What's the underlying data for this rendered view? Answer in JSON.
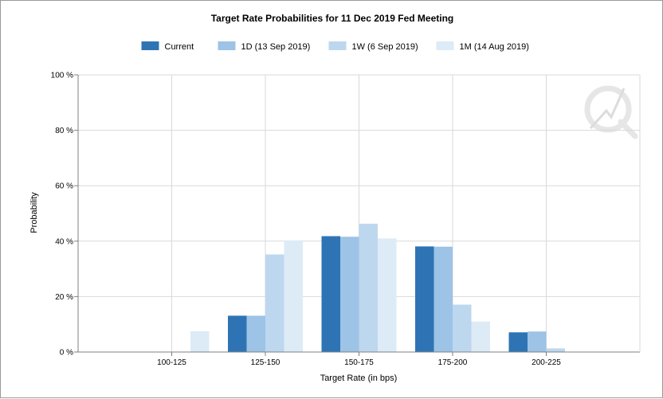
{
  "chart_data": {
    "type": "bar",
    "title": "Target Rate Probabilities for 11 Dec 2019 Fed Meeting",
    "xlabel": "Target Rate (in bps)",
    "ylabel": "Probability",
    "categories": [
      "100-125",
      "125-150",
      "150-175",
      "175-200",
      "200-225"
    ],
    "series": [
      {
        "name": "Current",
        "color": "#2e74b5",
        "values": [
          0,
          13.1,
          41.8,
          38.1,
          7.1
        ]
      },
      {
        "name": "1D (13 Sep 2019)",
        "color": "#9dc3e6",
        "values": [
          0,
          13.1,
          41.6,
          38.0,
          7.4
        ]
      },
      {
        "name": "1W (6 Sep 2019)",
        "color": "#bdd7ee",
        "values": [
          0,
          35.2,
          46.3,
          17.1,
          1.3
        ]
      },
      {
        "name": "1M (14 Aug 2019)",
        "color": "#ddebf7",
        "values": [
          7.5,
          40.3,
          41.0,
          11.0,
          0
        ]
      }
    ],
    "ylim": [
      0,
      100
    ],
    "yticks": [
      0,
      20,
      40,
      60,
      80,
      100
    ],
    "ytick_labels": [
      "0 %",
      "20 %",
      "40 %",
      "60 %",
      "80 %",
      "100 %"
    ],
    "grid": true,
    "legend_position": "top-center"
  },
  "gridline_color": "#d9d9d9",
  "watermark": "quikstrike-q-icon"
}
